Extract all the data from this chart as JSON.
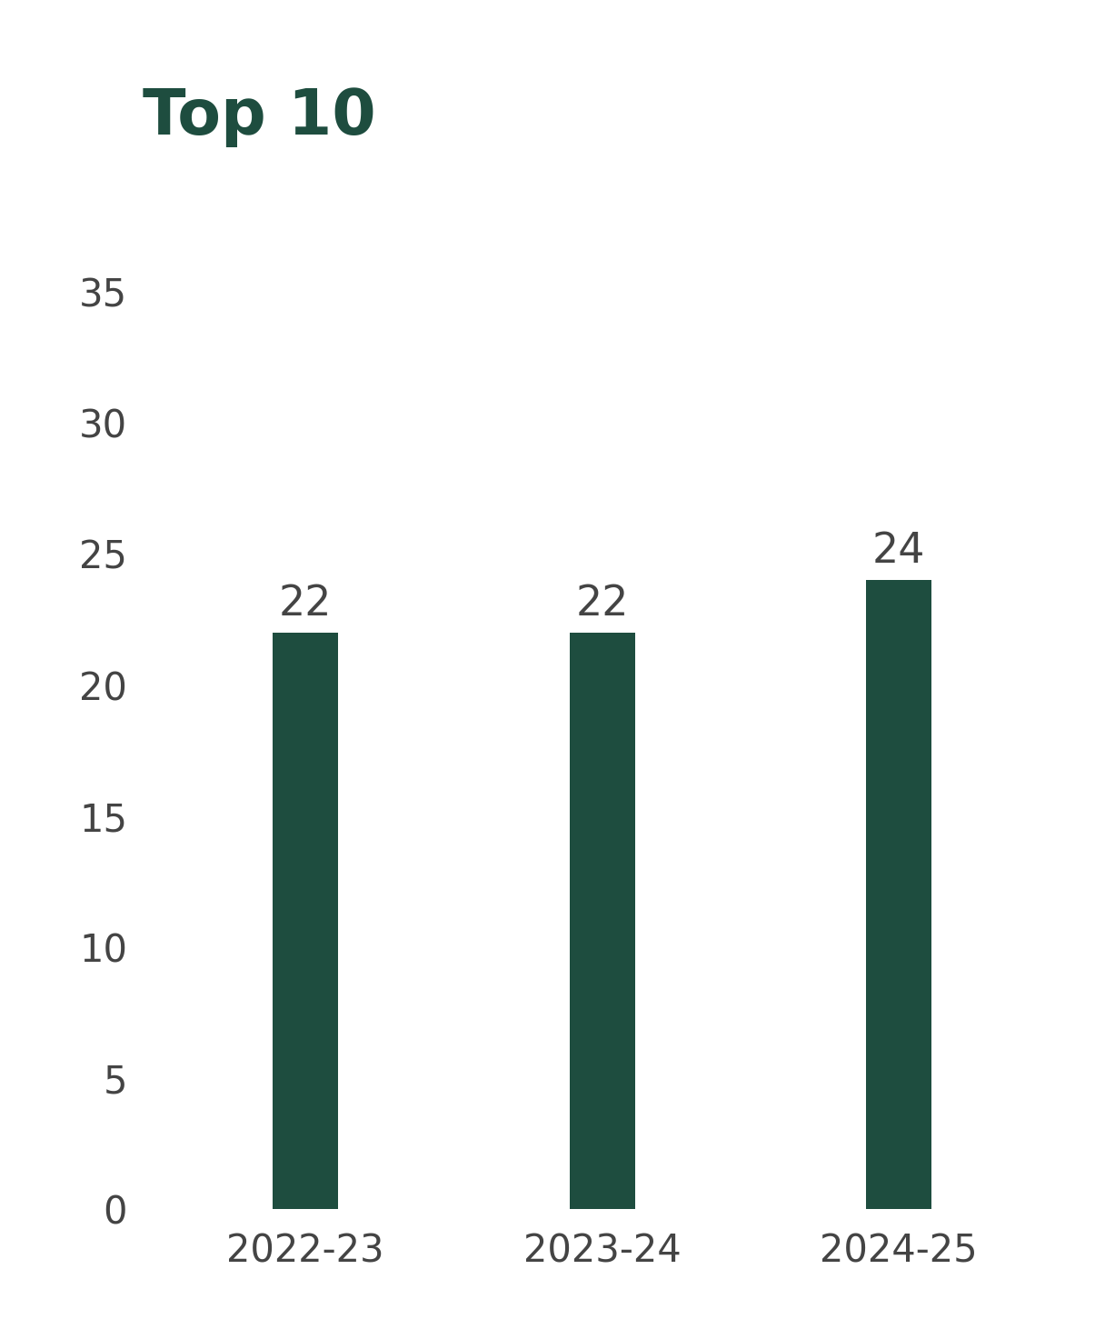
{
  "title": "Top 10",
  "categories": [
    "2022-23",
    "2023-24",
    "2024-25"
  ],
  "values": [
    22,
    22,
    24
  ],
  "bar_color": "#1e4d3f",
  "title_color": "#1e4d3f",
  "title_fontsize": 50,
  "title_fontweight": "bold",
  "ylabel_tick_labels": [
    "0",
    "5",
    "10",
    "15",
    "20",
    "25",
    "30",
    "35"
  ],
  "yticks": [
    0,
    5,
    10,
    15,
    20,
    25,
    30,
    35
  ],
  "ylim": [
    0,
    37
  ],
  "tick_fontsize": 30,
  "bar_label_fontsize": 33,
  "xlabel_fontsize": 30,
  "background_color": "#ffffff",
  "bar_width": 0.22,
  "annotation_color": "#444444",
  "tick_color": "#444444"
}
